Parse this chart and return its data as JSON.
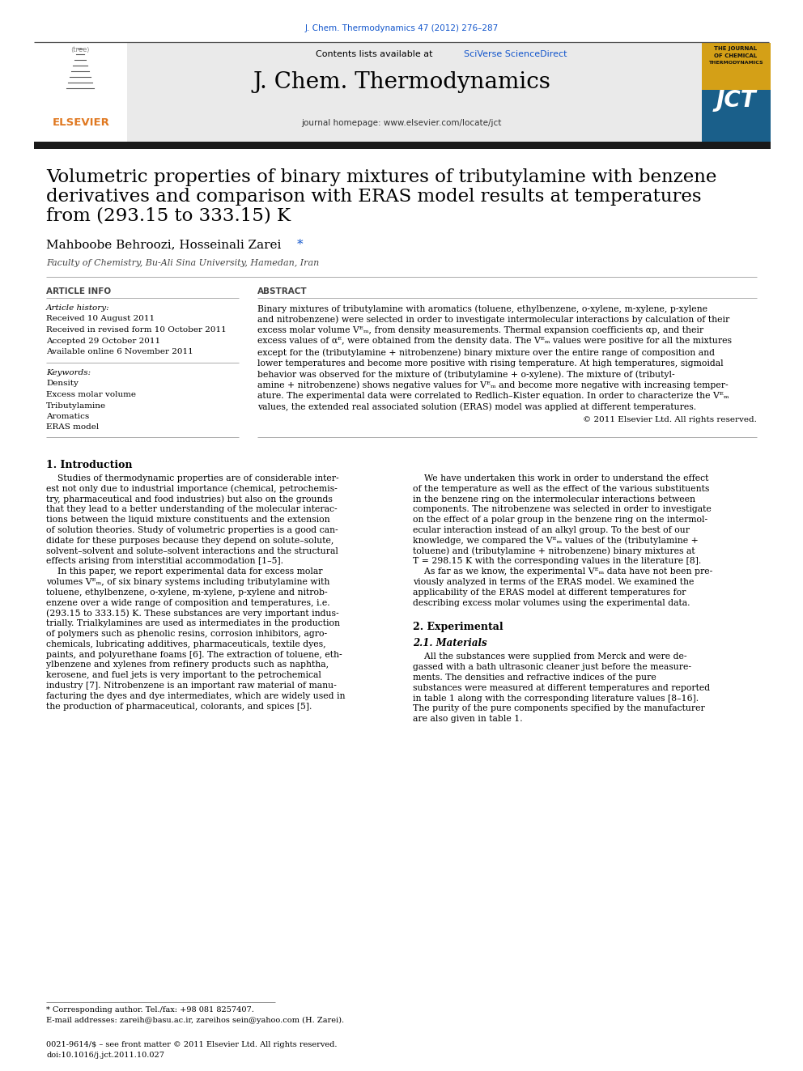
{
  "journal_ref": "J. Chem. Thermodynamics 47 (2012) 276–287",
  "journal_name": "J. Chem. Thermodynamics",
  "journal_homepage": "journal homepage: www.elsevier.com/locate/jct",
  "title_line1": "Volumetric properties of binary mixtures of tributylamine with benzene",
  "title_line2": "derivatives and comparison with ERAS model results at temperatures",
  "title_line3": "from (293.15 to 333.15) K",
  "authors_main": "Mahboobe Behroozi, Hosseinali Zarei ",
  "affiliation": "Faculty of Chemistry, Bu-Ali Sina University, Hamedan, Iran",
  "article_info_header": "ARTICLE INFO",
  "article_history_label": "Article history:",
  "received": "Received 10 August 2011",
  "revised": "Received in revised form 10 October 2011",
  "accepted": "Accepted 29 October 2011",
  "available": "Available online 6 November 2011",
  "keywords_label": "Keywords:",
  "keywords": [
    "Density",
    "Excess molar volume",
    "Tributylamine",
    "Aromatics",
    "ERAS model"
  ],
  "abstract_header": "ABSTRACT",
  "abstract_lines": [
    "Binary mixtures of tributylamine with aromatics (toluene, ethylbenzene, o-xylene, m-xylene, p-xylene",
    "and nitrobenzene) were selected in order to investigate intermolecular interactions by calculation of their",
    "excess molar volume Vᴱₘ, from density measurements. Thermal expansion coefficients αp, and their",
    "excess values of αᴱ, were obtained from the density data. The Vᴱₘ values were positive for all the mixtures",
    "except for the (tributylamine + nitrobenzene) binary mixture over the entire range of composition and",
    "lower temperatures and become more positive with rising temperature. At high temperatures, sigmoidal",
    "behavior was observed for the mixture of (tributylamine + o-xylene). The mixture of (tributyl-",
    "amine + nitrobenzene) shows negative values for Vᴱₘ and become more negative with increasing temper-",
    "ature. The experimental data were correlated to Redlich–Kister equation. In order to characterize the Vᴱₘ",
    "values, the extended real associated solution (ERAS) model was applied at different temperatures."
  ],
  "copyright": "© 2011 Elsevier Ltd. All rights reserved.",
  "intro_header": "1. Introduction",
  "intro_left_lines": [
    "    Studies of thermodynamic properties are of considerable inter-",
    "est not only due to industrial importance (chemical, petrochemis-",
    "try, pharmaceutical and food industries) but also on the grounds",
    "that they lead to a better understanding of the molecular interac-",
    "tions between the liquid mixture constituents and the extension",
    "of solution theories. Study of volumetric properties is a good can-",
    "didate for these purposes because they depend on solute–solute,",
    "solvent–solvent and solute–solvent interactions and the structural",
    "effects arising from interstitial accommodation [1–5].",
    "    In this paper, we report experimental data for excess molar",
    "volumes Vᴱₘ, of six binary systems including tributylamine with",
    "toluene, ethylbenzene, o-xylene, m-xylene, p-xylene and nitrob-",
    "enzene over a wide range of composition and temperatures, i.e.",
    "(293.15 to 333.15) K. These substances are very important indus-",
    "trially. Trialkylamines are used as intermediates in the production",
    "of polymers such as phenolic resins, corrosion inhibitors, agro-",
    "chemicals, lubricating additives, pharmaceuticals, textile dyes,",
    "paints, and polyurethane foams [6]. The extraction of toluene, eth-",
    "ylbenzene and xylenes from refinery products such as naphtha,",
    "kerosene, and fuel jets is very important to the petrochemical",
    "industry [7]. Nitrobenzene is an important raw material of manu-",
    "facturing the dyes and dye intermediates, which are widely used in",
    "the production of pharmaceutical, colorants, and spices [5]."
  ],
  "intro_right_lines": [
    "    We have undertaken this work in order to understand the effect",
    "of the temperature as well as the effect of the various substituents",
    "in the benzene ring on the intermolecular interactions between",
    "components. The nitrobenzene was selected in order to investigate",
    "on the effect of a polar group in the benzene ring on the intermol-",
    "ecular interaction instead of an alkyl group. To the best of our",
    "knowledge, we compared the Vᴱₘ values of the (tributylamine +",
    "toluene) and (tributylamine + nitrobenzene) binary mixtures at",
    "T = 298.15 K with the corresponding values in the literature [8].",
    "    As far as we know, the experimental Vᴱₘ data have not been pre-",
    "viously analyzed in terms of the ERAS model. We examined the",
    "applicability of the ERAS model at different temperatures for",
    "describing excess molar volumes using the experimental data."
  ],
  "section2_header": "2. Experimental",
  "section21_header": "2.1. Materials",
  "section21_lines": [
    "    All the substances were supplied from Merck and were de-",
    "gassed with a bath ultrasonic cleaner just before the measure-",
    "ments. The densities and refractive indices of the pure",
    "substances were measured at different temperatures and reported",
    "in table 1 along with the corresponding literature values [8–16].",
    "The purity of the pure components specified by the manufacturer",
    "are also given in table 1."
  ],
  "footnote_star": "* Corresponding author. Tel./fax: +98 081 8257407.",
  "footnote_email": "E-mail addresses: zareih@basu.ac.ir, zareihos sein@yahoo.com (H. Zarei).",
  "footnote_issn": "0021-9614/$ – see front matter © 2011 Elsevier Ltd. All rights reserved.",
  "footnote_doi": "doi:10.1016/j.jct.2011.10.027",
  "link_color": "#1155CC",
  "orange_color": "#E07820",
  "header_bg": "#EAEAEA",
  "thick_bar_color": "#1A1A1A"
}
